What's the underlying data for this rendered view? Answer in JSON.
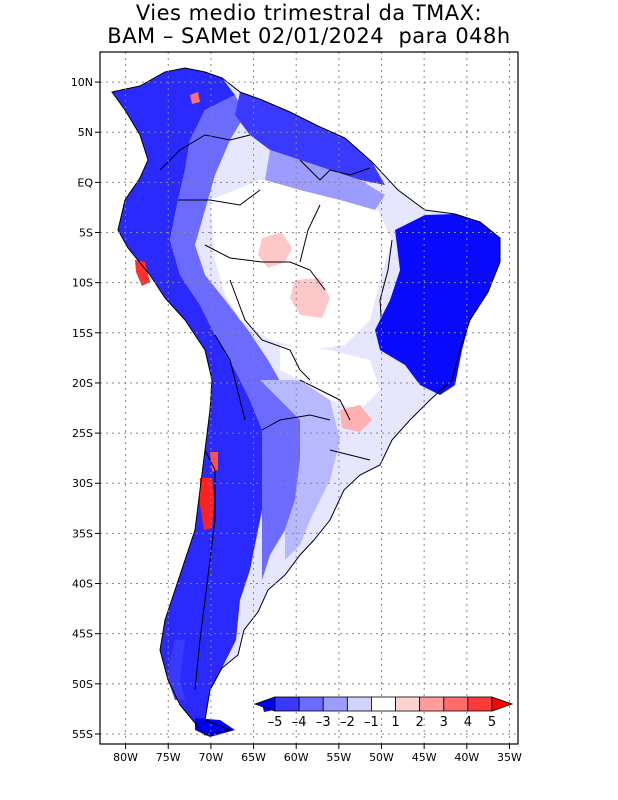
{
  "title": {
    "line1": "Vies medio trimestral da TMAX:",
    "line2": "BAM – SAMet 02/01/2024  para 048h"
  },
  "axes": {
    "lat_ticks": [
      "10N",
      "5N",
      "EQ",
      "5S",
      "10S",
      "15S",
      "20S",
      "25S",
      "30S",
      "35S",
      "40S",
      "45S",
      "50S",
      "55S"
    ],
    "lat_values": [
      10,
      5,
      0,
      -5,
      -10,
      -15,
      -20,
      -25,
      -30,
      -35,
      -40,
      -45,
      -50,
      -55
    ],
    "lon_ticks": [
      "80W",
      "75W",
      "70W",
      "65W",
      "60W",
      "55W",
      "50W",
      "45W",
      "40W",
      "35W"
    ],
    "lon_values": [
      -80,
      -75,
      -70,
      -65,
      -60,
      -55,
      -50,
      -45,
      -40,
      -35
    ],
    "lon_range": [
      -83,
      -34
    ],
    "lat_range": [
      13,
      -56
    ],
    "grid": true
  },
  "colorbar": {
    "labels": [
      "–5",
      "–4",
      "–3",
      "–2",
      "–1",
      "1",
      "2",
      "3",
      "4",
      "5"
    ],
    "colors": [
      "#0000ff",
      "#3a3aff",
      "#6b6bff",
      "#9c9cff",
      "#d2d2ff",
      "#ffffff",
      "#ffd2d2",
      "#ff9c9c",
      "#ff6b6b",
      "#ff3a3a",
      "#ff0000"
    ]
  }
}
